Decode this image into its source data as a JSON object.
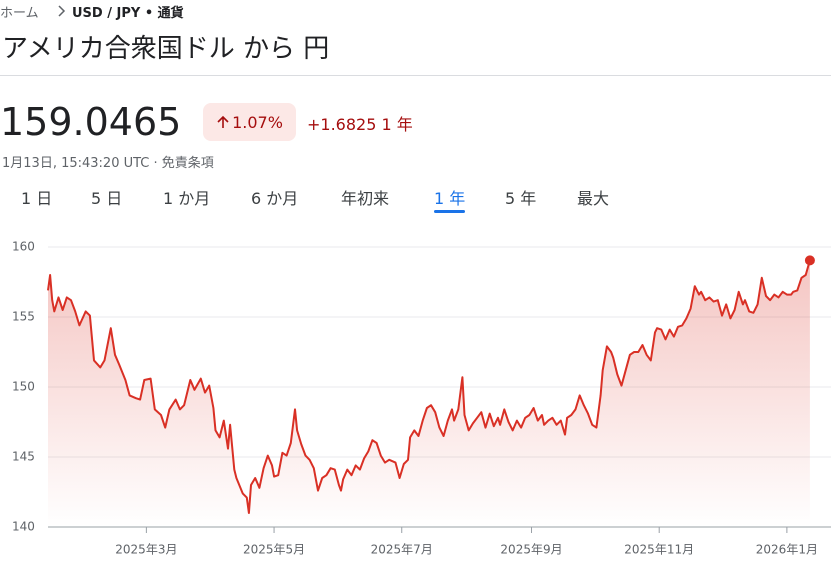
{
  "breadcrumb": {
    "home": "ホーム",
    "current": "USD / JPY • 通貨"
  },
  "header": {
    "title": "アメリカ合衆国ドル から 円"
  },
  "quote": {
    "price": "159.0465",
    "change_pct": "1.07%",
    "change": "+1.6825",
    "period": "1 年",
    "timestamp": "1月13日, 15:43:20 UTC",
    "disclaimer": "免責条項"
  },
  "tabs": {
    "items": [
      "1 日",
      "5 日",
      "1 か月",
      "6 か月",
      "年初来",
      "1 年",
      "5 年",
      "最大"
    ],
    "selected": 5
  },
  "chart_data": {
    "type": "line",
    "color": "#d93025",
    "grid": true,
    "x": [
      0,
      1,
      2,
      3,
      5,
      7,
      9,
      11,
      13,
      15,
      18,
      20,
      22,
      25,
      27,
      30,
      32,
      34,
      37,
      39,
      42,
      44,
      46,
      49,
      51,
      54,
      56,
      58,
      61,
      63,
      65,
      68,
      70,
      73,
      75,
      77,
      79,
      80,
      82,
      84,
      86,
      87,
      89,
      90,
      93,
      95,
      96,
      97,
      99,
      101,
      103,
      105,
      107,
      108,
      110,
      112,
      114,
      116,
      118,
      119,
      121,
      123,
      125,
      127,
      129,
      131,
      133,
      135,
      137,
      139,
      140,
      141,
      143,
      145,
      147,
      149,
      151,
      153,
      155,
      157,
      159,
      161,
      163,
      166,
      168,
      170,
      172,
      173,
      175,
      177,
      179,
      181,
      183,
      185,
      187,
      189,
      191,
      193,
      194,
      196,
      198,
      199,
      201,
      203,
      205,
      207,
      209,
      211,
      213,
      215,
      216,
      218,
      220,
      222,
      224,
      226,
      228,
      230,
      232,
      234,
      236,
      237,
      239,
      241,
      243,
      245,
      247,
      248,
      250,
      252,
      254,
      256,
      258,
      260,
      262,
      264,
      265,
      267,
      269,
      270,
      272,
      274,
      276,
      278,
      280,
      282,
      284,
      286,
      288,
      290,
      291,
      293,
      295,
      297,
      299,
      301,
      303,
      305,
      307,
      309,
      311,
      312,
      314,
      316,
      318,
      320,
      322,
      324,
      326,
      328,
      330,
      332,
      333,
      335,
      337,
      339,
      341,
      343,
      345,
      347,
      349,
      351,
      353,
      355,
      356,
      358,
      360,
      362,
      364
    ],
    "values": [
      156.9,
      158.0,
      156.2,
      155.4,
      156.4,
      155.5,
      156.4,
      156.2,
      155.4,
      154.4,
      155.4,
      155.1,
      151.9,
      151.4,
      151.9,
      154.2,
      152.3,
      151.6,
      150.5,
      149.4,
      149.2,
      149.1,
      150.5,
      150.6,
      148.4,
      148.0,
      147.1,
      148.4,
      149.1,
      148.4,
      148.7,
      150.5,
      149.8,
      150.6,
      149.6,
      150.1,
      148.5,
      146.9,
      146.4,
      147.6,
      145.6,
      147.3,
      144.1,
      143.5,
      142.4,
      142.1,
      141.0,
      143.0,
      143.5,
      142.8,
      144.2,
      145.1,
      144.4,
      143.6,
      143.7,
      145.3,
      145.1,
      146.0,
      148.4,
      146.9,
      145.9,
      145.1,
      144.8,
      144.2,
      142.6,
      143.5,
      143.7,
      144.2,
      144.1,
      143.0,
      142.6,
      143.4,
      144.1,
      143.7,
      144.4,
      144.1,
      144.9,
      145.4,
      146.2,
      146.0,
      145.1,
      144.6,
      144.8,
      144.6,
      143.5,
      144.5,
      144.8,
      146.4,
      146.9,
      146.5,
      147.6,
      148.5,
      148.7,
      148.2,
      147.1,
      146.5,
      147.6,
      148.4,
      147.6,
      148.4,
      150.7,
      148.0,
      146.9,
      147.4,
      147.8,
      148.2,
      147.1,
      148.1,
      147.2,
      147.8,
      147.3,
      148.4,
      147.5,
      146.9,
      147.6,
      147.1,
      147.8,
      148.0,
      148.5,
      147.6,
      148.0,
      147.3,
      147.6,
      147.8,
      147.3,
      147.6,
      146.6,
      147.8,
      148.0,
      148.4,
      149.4,
      148.7,
      148.1,
      147.3,
      147.1,
      149.4,
      151.2,
      152.9,
      152.5,
      152.1,
      150.9,
      150.1,
      151.2,
      152.3,
      152.5,
      152.5,
      153.0,
      152.3,
      151.9,
      153.9,
      154.2,
      154.1,
      153.4,
      154.1,
      153.6,
      154.3,
      154.4,
      154.9,
      155.6,
      157.2,
      156.6,
      156.8,
      156.2,
      156.4,
      156.1,
      156.2,
      155.1,
      155.9,
      154.9,
      155.5,
      156.8,
      155.9,
      156.2,
      155.4,
      155.3,
      155.9,
      157.8,
      156.5,
      156.2,
      156.6,
      156.4,
      156.8,
      156.6,
      156.6,
      156.8,
      156.9,
      157.8,
      158.0,
      159.0465
    ],
    "xlim": [
      0,
      365
    ],
    "xticks": [
      {
        "value": 47,
        "label": "2025年3月"
      },
      {
        "value": 108,
        "label": "2025年5月"
      },
      {
        "value": 169,
        "label": "2025年7月"
      },
      {
        "value": 231,
        "label": "2025年9月"
      },
      {
        "value": 292,
        "label": "2025年11月"
      },
      {
        "value": 353,
        "label": "2026年1月"
      }
    ],
    "ylim": [
      140,
      160
    ],
    "yticks": [
      140,
      145,
      150,
      155,
      160
    ]
  }
}
